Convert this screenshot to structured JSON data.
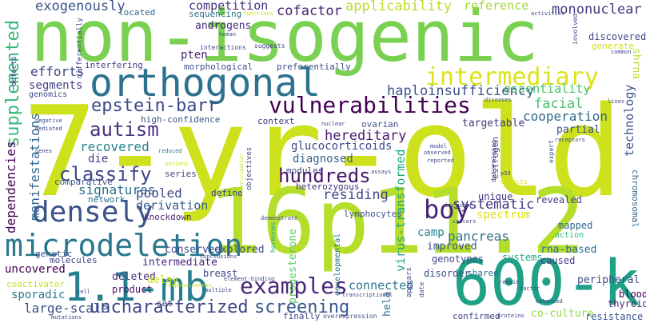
{
  "words": [
    {
      "text": "7-yr-old",
      "color": "#cde11d"
    },
    {
      "text": "non-isogenic",
      "color": "#7ad151"
    },
    {
      "text": "16p11.2",
      "color": "#b5de2b"
    },
    {
      "text": "orthogonal",
      "color": "#2c728e"
    },
    {
      "text": "600-kb",
      "color": "#1fa187"
    },
    {
      "text": "1.1-mb",
      "color": "#277f8e"
    },
    {
      "text": "microdeletion",
      "color": "#2a788e"
    },
    {
      "text": "densely",
      "color": "#3b528b"
    },
    {
      "text": "intermediary",
      "color": "#dde318"
    },
    {
      "text": "vulnerabilities",
      "color": "#440154"
    },
    {
      "text": "examples",
      "color": "#482878"
    },
    {
      "text": "uncharacterized",
      "color": "#3e4989"
    },
    {
      "text": "boy",
      "color": "#482475"
    },
    {
      "text": "hundreds",
      "color": "#481467"
    },
    {
      "text": "epstein-barr",
      "color": "#3e4a89"
    },
    {
      "text": "classify",
      "color": "#3f4788"
    },
    {
      "text": "autism",
      "color": "#46327e"
    },
    {
      "text": "screening",
      "color": "#38588c"
    },
    {
      "text": "supplemented",
      "color": "#35b779"
    },
    {
      "text": "haploinsufficiency",
      "color": "#3b528b"
    },
    {
      "text": "applicability",
      "color": "#b8de29"
    },
    {
      "text": "reference",
      "color": "#a0da39"
    },
    {
      "text": "mononuclear",
      "color": "#443a83"
    },
    {
      "text": "competition",
      "color": "#46327e"
    },
    {
      "text": "cofactor",
      "color": "#482173"
    },
    {
      "text": "exogenously",
      "color": "#3b528b"
    },
    {
      "text": "androgens",
      "color": "#472d7b"
    },
    {
      "text": "pten",
      "color": "#482677"
    },
    {
      "text": "efforts",
      "color": "#3f4788"
    },
    {
      "text": "segments",
      "color": "#424086"
    },
    {
      "text": "essentiality",
      "color": "#4ac16d"
    },
    {
      "text": "facial",
      "color": "#48c16e"
    },
    {
      "text": "cooperation",
      "color": "#31688e"
    },
    {
      "text": "hereditary",
      "color": "#481b6d"
    },
    {
      "text": "recovered",
      "color": "#26828e"
    },
    {
      "text": "glucocorticoids",
      "color": "#3e4989"
    },
    {
      "text": "diagnosed",
      "color": "#34618d"
    },
    {
      "text": "die",
      "color": "#424086"
    },
    {
      "text": "signatures",
      "color": "#2d708e"
    },
    {
      "text": "pooled",
      "color": "#3e4989"
    },
    {
      "text": "derivation",
      "color": "#375b8d"
    },
    {
      "text": "residing",
      "color": "#414487"
    },
    {
      "text": "systematic",
      "color": "#453581"
    },
    {
      "text": "manifestations",
      "color": "#31688e"
    },
    {
      "text": "dependencies",
      "color": "#440154"
    },
    {
      "text": "technology",
      "color": "#3b528b"
    },
    {
      "text": "pancreas",
      "color": "#2d708e"
    },
    {
      "text": "camp",
      "color": "#26828e"
    },
    {
      "text": "spectrum",
      "color": "#dde318"
    },
    {
      "text": "mapped",
      "color": "#31688e"
    },
    {
      "text": "revealed",
      "color": "#424086"
    },
    {
      "text": "unique",
      "color": "#46337f"
    },
    {
      "text": "targetable",
      "color": "#453781"
    },
    {
      "text": "partial",
      "color": "#3b528b"
    },
    {
      "text": "virus-transformed",
      "color": "#22a884"
    },
    {
      "text": "progesterone",
      "color": "#5ec962"
    },
    {
      "text": "connected",
      "color": "#2a788e"
    },
    {
      "text": "uncovered",
      "color": "#440154"
    },
    {
      "text": "intermediate",
      "color": "#482878"
    },
    {
      "text": "conserved",
      "color": "#3e4989"
    },
    {
      "text": "explored",
      "color": "#3b528b"
    },
    {
      "text": "deleted",
      "color": "#46327e"
    },
    {
      "text": "sporadic",
      "color": "#2a788e"
    },
    {
      "text": "large-scale",
      "color": "#3b528b"
    },
    {
      "text": "coactivator",
      "color": "#c8e020"
    },
    {
      "text": "breast",
      "color": "#3e4a89"
    },
    {
      "text": "delay",
      "color": "#cae11f"
    },
    {
      "text": "product",
      "color": "#471063"
    },
    {
      "text": "set",
      "color": "#424086"
    },
    {
      "text": "finally",
      "color": "#404688"
    },
    {
      "text": "improved",
      "color": "#3b528b"
    },
    {
      "text": "genotypes",
      "color": "#3e4989"
    },
    {
      "text": "systems",
      "color": "#22a884"
    },
    {
      "text": "rna-based",
      "color": "#2f6c8e"
    },
    {
      "text": "caused",
      "color": "#433e85"
    },
    {
      "text": "disorder",
      "color": "#3b528b"
    },
    {
      "text": "shared",
      "color": "#2d708e"
    },
    {
      "text": "confirmed",
      "color": "#404688"
    },
    {
      "text": "co-culture",
      "color": "#95d840"
    },
    {
      "text": "resistance",
      "color": "#3b528b"
    },
    {
      "text": "peripheral",
      "color": "#3e4a89"
    },
    {
      "text": "blood",
      "color": "#440154"
    },
    {
      "text": "thyroid",
      "color": "#482878"
    },
    {
      "text": "hela",
      "color": "#2c728e"
    },
    {
      "text": "discovered",
      "color": "#3e4989"
    },
    {
      "text": "generate",
      "color": "#d0e11c"
    },
    {
      "text": "shrna",
      "color": "#b5de2b"
    },
    {
      "text": "chromosomal",
      "color": "#31688e"
    },
    {
      "text": "estrogen",
      "color": "#404688"
    },
    {
      "text": "lymphocytes",
      "color": "#3b528b"
    },
    {
      "text": "heterozygous",
      "color": "#46327e"
    },
    {
      "text": "modules",
      "color": "#3e4989"
    },
    {
      "text": "knockdown",
      "color": "#482677"
    },
    {
      "text": "network",
      "color": "#2c728e"
    },
    {
      "text": "series",
      "color": "#3e4989"
    },
    {
      "text": "molecules",
      "color": "#404688"
    },
    {
      "text": "genetic",
      "color": "#3b528b"
    },
    {
      "text": "comparative",
      "color": "#3b528b"
    },
    {
      "text": "define",
      "color": "#424086"
    },
    {
      "text": "high-confidence",
      "color": "#3b528b"
    },
    {
      "text": "context",
      "color": "#453781"
    },
    {
      "text": "ovarian",
      "color": "#3b528b"
    },
    {
      "text": "morphological",
      "color": "#3b528b"
    },
    {
      "text": "preferentially",
      "color": "#3b528b"
    },
    {
      "text": "interfering",
      "color": "#433e85"
    },
    {
      "text": "located",
      "color": "#31688e"
    },
    {
      "text": "sequencing",
      "color": "#2c728e"
    },
    {
      "text": "genomics",
      "color": "#3e4a89"
    },
    {
      "text": "defects",
      "color": "#3e4989"
    },
    {
      "text": "differentially",
      "color": "#404688"
    },
    {
      "text": "interactions",
      "color": "#3e4989"
    },
    {
      "text": "suggests",
      "color": "#433e85"
    },
    {
      "text": "human",
      "color": "#3e4989"
    },
    {
      "text": "functions",
      "color": "#c2df23"
    },
    {
      "text": "activities",
      "color": "#3e4989"
    },
    {
      "text": "involved",
      "color": "#3e4989"
    },
    {
      "text": "common",
      "color": "#3e4989"
    },
    {
      "text": "diseases",
      "color": "#3b528b"
    },
    {
      "text": "lines",
      "color": "#3e4989"
    },
    {
      "text": "negative",
      "color": "#3e4989"
    },
    {
      "text": "mediated",
      "color": "#3e4989"
    },
    {
      "text": "genes",
      "color": "#3e4989"
    },
    {
      "text": "patient",
      "color": "#cde11d"
    },
    {
      "text": "reduced",
      "color": "#2a788e"
    },
    {
      "text": "objectives",
      "color": "#3e4989"
    },
    {
      "text": "nuclear",
      "color": "#3e4989"
    },
    {
      "text": "model",
      "color": "#3e4989"
    },
    {
      "text": "observed",
      "color": "#3e4989"
    },
    {
      "text": "reported",
      "color": "#3e4989"
    },
    {
      "text": "assays",
      "color": "#3e4989"
    },
    {
      "text": "demonstrate",
      "color": "#3e4989"
    },
    {
      "text": "hormones",
      "color": "#22a884"
    },
    {
      "text": "developmental",
      "color": "#2c728e"
    },
    {
      "text": "appears",
      "color": "#3e4989"
    },
    {
      "text": "transcriptional",
      "color": "#3e4989"
    },
    {
      "text": "overexpression",
      "color": "#3e4989"
    },
    {
      "text": "proteins",
      "color": "#3e4989"
    },
    {
      "text": "enhanced",
      "color": "#3e4989"
    },
    {
      "text": "cancers",
      "color": "#3e4989"
    },
    {
      "text": "included",
      "color": "#3e4989"
    },
    {
      "text": "determining",
      "color": "#3e4989"
    },
    {
      "text": "effects",
      "color": "#d8e219"
    },
    {
      "text": "p53",
      "color": "#3e4989"
    },
    {
      "text": "expert",
      "color": "#3e4989"
    },
    {
      "text": "receptors",
      "color": "#3e4989"
    },
    {
      "text": "action",
      "color": "#35b779"
    },
    {
      "text": "remain",
      "color": "#3e4989"
    },
    {
      "text": "factor",
      "color": "#3e4989"
    },
    {
      "text": "date",
      "color": "#3e4989"
    },
    {
      "text": "responsiveness",
      "color": "#c2df23"
    },
    {
      "text": "element-binding",
      "color": "#3e4989"
    },
    {
      "text": "conclusions",
      "color": "#3e4989"
    },
    {
      "text": "multiple",
      "color": "#3e4989"
    },
    {
      "text": "cell",
      "color": "#3e4989"
    },
    {
      "text": "mutations",
      "color": "#3e4989"
    },
    {
      "text": "anticipation",
      "color": "#c2df23"
    }
  ]
}
